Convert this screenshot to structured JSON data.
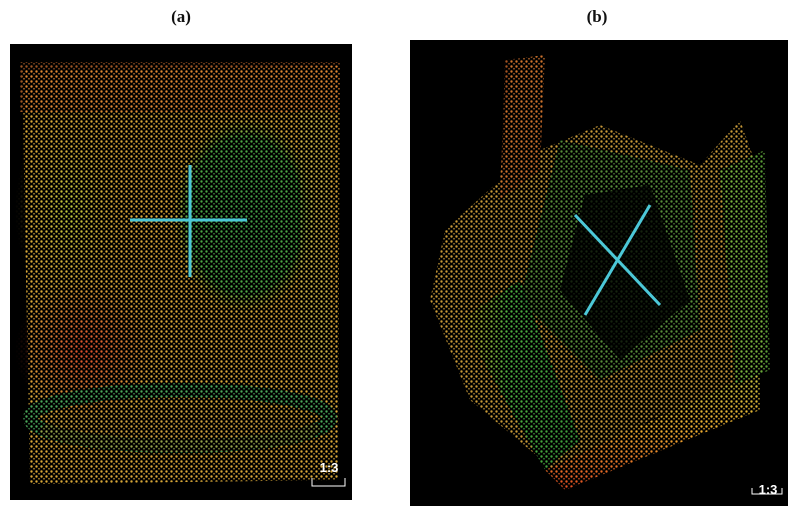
{
  "panels": [
    {
      "label": "(a)",
      "scale": "1:3"
    },
    {
      "label": "(b)",
      "scale": "1:3"
    }
  ]
}
